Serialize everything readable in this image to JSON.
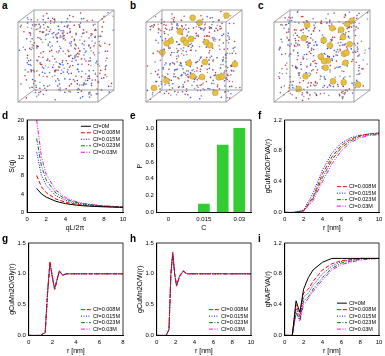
{
  "images": [
    {
      "label": "a",
      "large_particles": false
    },
    {
      "label": "b",
      "large_particles": true
    },
    {
      "label": "c",
      "large_particles": true
    }
  ],
  "chart_data": [
    {
      "panel": "d",
      "type": "line",
      "x_label": "qL/2π",
      "y_label": "S(q)",
      "xlim": [
        0,
        10
      ],
      "xticks": [
        0,
        2,
        4,
        6,
        8,
        10
      ],
      "ylim": [
        0,
        20
      ],
      "yticks": [
        0,
        4,
        8,
        12,
        16,
        20
      ],
      "legend": "upper right",
      "x": [
        1,
        1.5,
        2,
        3,
        4,
        5,
        6,
        8,
        10
      ],
      "series": [
        {
          "name": "Cf=0M",
          "color": "#000000",
          "line_style": "solid",
          "values": [
            5.2,
            4,
            3.3,
            2.4,
            1.9,
            1.6,
            1.4,
            1.2,
            1.1
          ]
        },
        {
          "name": "Cf=0.008M",
          "color": "#ff0000",
          "line_style": "dashed",
          "values": [
            8,
            5.5,
            4.3,
            2.9,
            2.2,
            1.8,
            1.5,
            1.3,
            1.1
          ]
        },
        {
          "name": "Cf=0.015M",
          "color": "#0000ff",
          "line_style": "dotted",
          "values": [
            13,
            8,
            5.8,
            3.6,
            2.6,
            2.0,
            1.7,
            1.3,
            1.1
          ]
        },
        {
          "name": "Cf=0.023M",
          "color": "#008000",
          "line_style": "dashdot",
          "values": [
            16,
            10,
            7,
            4.2,
            2.9,
            2.2,
            1.8,
            1.4,
            1.2
          ]
        },
        {
          "name": "Cf=0.03M",
          "color": "#ff00ff",
          "line_style": "dashdotdot",
          "values": [
            20,
            12,
            8.2,
            4.8,
            3.2,
            2.4,
            1.9,
            1.4,
            1.2
          ]
        }
      ]
    },
    {
      "panel": "e",
      "type": "bar",
      "x_label": "C",
      "y_label": "P",
      "color": "#33cc33",
      "xlim": [
        -0.005,
        0.035
      ],
      "xticks": [
        0,
        0.015,
        0.03
      ],
      "ylim": [
        0,
        1.1
      ],
      "yticks": [
        {
          "value": 0,
          "label": "0.0"
        },
        {
          "value": 0.2,
          "label": "0.2"
        },
        {
          "value": 0.4,
          "label": "0.4"
        },
        {
          "value": 0.6,
          "label": "0.6"
        },
        {
          "value": 0.8,
          "label": "0.8"
        },
        {
          "value": 1,
          "label": "1.0"
        }
      ],
      "x": [
        0,
        0.008,
        0.015,
        0.023,
        0.03
      ],
      "values": [
        0,
        0,
        0.1,
        0.8,
        1.0
      ]
    },
    {
      "panel": "f",
      "type": "line",
      "x_label": "r [nm]",
      "y_label": "gCuMn2O/PVA(r)",
      "xlim": [
        0,
        10
      ],
      "xticks": [
        0,
        2,
        4,
        6,
        8,
        10
      ],
      "ylim": [
        0,
        1.2
      ],
      "yticks": [
        {
          "value": 0,
          "label": "0.0"
        },
        {
          "value": 0.4,
          "label": "0.4"
        },
        {
          "value": 0.8,
          "label": "0.8"
        },
        {
          "value": 1.2,
          "label": "1.2"
        }
      ],
      "legend": "lower right",
      "x": [
        0,
        1,
        2,
        3,
        4,
        5,
        6,
        7,
        8,
        9,
        10
      ],
      "series": [
        {
          "name": "Cf=0.008M",
          "color": "#ff0000",
          "line_style": "dashed",
          "values": [
            0,
            0,
            0.02,
            0.2,
            0.5,
            0.72,
            0.87,
            0.95,
            1.0,
            1.02,
            1.03
          ]
        },
        {
          "name": "Cf=0.015M",
          "color": "#0000ff",
          "line_style": "dotted",
          "values": [
            0,
            0,
            0.03,
            0.25,
            0.55,
            0.77,
            0.9,
            0.97,
            1.0,
            1.02,
            1.03
          ]
        },
        {
          "name": "Cf=0.023M",
          "color": "#008000",
          "line_style": "dashdot",
          "values": [
            0,
            0,
            0.02,
            0.18,
            0.45,
            0.68,
            0.84,
            0.93,
            0.99,
            1.01,
            1.02
          ]
        },
        {
          "name": "Cf=0.03M",
          "color": "#ff00ff",
          "line_style": "dashdotdot",
          "values": [
            0,
            0,
            0.02,
            0.15,
            0.4,
            0.63,
            0.8,
            0.91,
            0.97,
            1.0,
            1.01
          ]
        }
      ]
    },
    {
      "panel": "g",
      "type": "line",
      "x_label": "r [nm]",
      "y_label": "gCuMn2O/Gly(r)",
      "xlim": [
        0,
        8
      ],
      "xticks": [
        0,
        2,
        4,
        6,
        8
      ],
      "ylim": [
        0,
        1.5
      ],
      "yticks": [
        {
          "value": 0,
          "label": "0.0"
        },
        {
          "value": 0.5,
          "label": "0.5"
        },
        {
          "value": 1,
          "label": "1.0"
        },
        {
          "value": 1.5,
          "label": "1.5"
        }
      ],
      "legend": "lower right",
      "x": [
        0,
        1,
        1.4,
        1.6,
        1.8,
        2.0,
        2.2,
        2.4,
        2.6,
        2.9,
        3.2,
        4,
        5,
        6,
        7,
        8
      ],
      "series": [
        {
          "name": "Cf=0.008M",
          "color": "#ff0000",
          "line_style": "dashed",
          "values": [
            0,
            0,
            0.05,
            0.7,
            1.2,
            0.95,
            0.75,
            0.9,
            1.05,
            0.97,
            1.0,
            1.0,
            1.0,
            1.0,
            1.0,
            1.0
          ]
        },
        {
          "name": "Cf=0.015M",
          "color": "#0000ff",
          "line_style": "dotted",
          "values": [
            0,
            0,
            0.05,
            0.72,
            1.18,
            0.94,
            0.76,
            0.9,
            1.04,
            0.98,
            1.0,
            1.0,
            1.0,
            1.0,
            1.0,
            1.0
          ]
        },
        {
          "name": "Cf=0.023M",
          "color": "#008000",
          "line_style": "dashdot",
          "values": [
            0,
            0,
            0.04,
            0.68,
            1.19,
            0.96,
            0.74,
            0.91,
            1.05,
            0.97,
            1.0,
            1.0,
            1.0,
            1.0,
            1.0,
            1.0
          ]
        },
        {
          "name": "Cf=0.03M",
          "color": "#ff00ff",
          "line_style": "dashdotdot",
          "values": [
            0,
            0,
            0.05,
            0.7,
            1.17,
            0.95,
            0.75,
            0.89,
            1.04,
            0.98,
            1.0,
            1.0,
            1.0,
            1.0,
            1.0,
            1.0
          ]
        }
      ]
    },
    {
      "panel": "h",
      "type": "line",
      "x_label": "r [nm]",
      "y_label": "gCuMn2O/W(r)",
      "xlim": [
        0,
        10
      ],
      "xticks": [
        0,
        2,
        4,
        6,
        8,
        10
      ],
      "ylim": [
        0,
        1.5
      ],
      "yticks": [
        {
          "value": 0,
          "label": "0.0"
        },
        {
          "value": 0.5,
          "label": "0.5"
        },
        {
          "value": 1,
          "label": "1.0"
        },
        {
          "value": 1.5,
          "label": "1.5"
        }
      ],
      "legend": "lower right",
      "x": [
        0,
        1,
        1.3,
        1.5,
        1.7,
        1.9,
        2.1,
        2.4,
        2.8,
        3.2,
        4,
        6,
        8,
        10
      ],
      "series": [
        {
          "name": "Cf=0.008M",
          "color": "#ff0000",
          "line_style": "dashed",
          "values": [
            0,
            0,
            0.1,
            1.0,
            1.35,
            1.0,
            0.8,
            0.95,
            1.05,
            1.0,
            1.0,
            1.0,
            1.0,
            1.0
          ]
        },
        {
          "name": "Cf=0.015M",
          "color": "#0000ff",
          "line_style": "dotted",
          "values": [
            0,
            0,
            0.1,
            0.98,
            1.33,
            1.01,
            0.81,
            0.95,
            1.04,
            1.0,
            1.0,
            1.0,
            1.0,
            1.0
          ]
        },
        {
          "name": "Cf=0.023M",
          "color": "#008000",
          "line_style": "dashdot",
          "values": [
            0,
            0,
            0.09,
            1.0,
            1.34,
            0.99,
            0.8,
            0.96,
            1.05,
            1.0,
            1.0,
            1.0,
            1.0,
            1.0
          ]
        },
        {
          "name": "Cf=0.03M",
          "color": "#ff00ff",
          "line_style": "dashdotdot",
          "values": [
            0,
            0,
            0.1,
            0.99,
            1.32,
            1.0,
            0.82,
            0.95,
            1.04,
            1.0,
            1.0,
            1.0,
            1.0,
            1.0
          ]
        }
      ]
    },
    {
      "panel": "i",
      "type": "line",
      "x_label": "r [nm]",
      "y_label": "gNA/PVA(r)",
      "xlim": [
        0,
        10
      ],
      "xticks": [
        0,
        2,
        4,
        6,
        8,
        10
      ],
      "ylim": [
        0,
        1.2
      ],
      "yticks": [
        {
          "value": 0,
          "label": "0.0"
        },
        {
          "value": 0.4,
          "label": "0.4"
        },
        {
          "value": 0.8,
          "label": "0.8"
        },
        {
          "value": 1.2,
          "label": "1.2"
        }
      ],
      "legend": "lower right",
      "x": [
        0,
        0.8,
        1.2,
        1.6,
        2,
        2.5,
        3,
        4,
        5,
        6,
        8,
        10
      ],
      "series": [
        {
          "name": "Cf=0M",
          "color": "#000000",
          "line_style": "solid",
          "values": [
            0,
            0,
            0.45,
            0.3,
            0.6,
            0.75,
            0.85,
            0.95,
            1.0,
            1.0,
            1.0,
            1.0
          ]
        },
        {
          "name": "Cf=0.008M",
          "color": "#ff0000",
          "line_style": "dashed",
          "values": [
            0,
            0,
            0.4,
            0.25,
            0.55,
            0.6,
            0.7,
            0.85,
            0.93,
            0.97,
            1.0,
            1.0
          ]
        },
        {
          "name": "Cf=0.015M",
          "color": "#0000ff",
          "line_style": "dotted",
          "values": [
            0,
            0,
            0.35,
            0.22,
            0.5,
            0.55,
            0.65,
            0.8,
            0.9,
            0.96,
            1.0,
            1.0
          ]
        },
        {
          "name": "Cf=0.023M",
          "color": "#008000",
          "line_style": "dashdot",
          "values": [
            0,
            0,
            0.3,
            0.2,
            0.45,
            0.5,
            0.6,
            0.75,
            0.87,
            0.94,
            0.99,
            1.0
          ]
        },
        {
          "name": "Cf=0.03M",
          "color": "#ff00ff",
          "line_style": "dashdotdot",
          "values": [
            0,
            0,
            0.3,
            0.18,
            0.4,
            0.48,
            0.57,
            0.72,
            0.85,
            0.92,
            0.98,
            1.0
          ]
        }
      ]
    }
  ]
}
